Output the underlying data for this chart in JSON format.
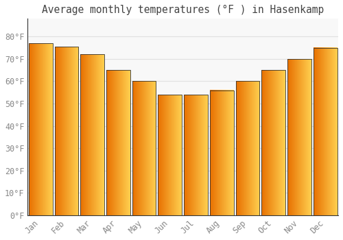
{
  "title": "Average monthly temperatures (°F ) in Hasenkamp",
  "months": [
    "Jan",
    "Feb",
    "Mar",
    "Apr",
    "May",
    "Jun",
    "Jul",
    "Aug",
    "Sep",
    "Oct",
    "Nov",
    "Dec"
  ],
  "values": [
    77,
    75.5,
    72,
    65,
    60,
    54,
    54,
    56,
    60,
    65,
    70,
    75
  ],
  "bar_color_left": "#E87000",
  "bar_color_right": "#FFD050",
  "bar_edge_color": "#333333",
  "background_color": "#ffffff",
  "plot_bg_color": "#f8f8f8",
  "ylim": [
    0,
    88
  ],
  "yticks": [
    0,
    10,
    20,
    30,
    40,
    50,
    60,
    70,
    80
  ],
  "ytick_labels": [
    "0°F",
    "10°F",
    "20°F",
    "30°F",
    "40°F",
    "50°F",
    "60°F",
    "70°F",
    "80°F"
  ],
  "grid_color": "#e0e0e0",
  "tick_label_color": "#888888",
  "title_color": "#444444",
  "title_fontsize": 10.5,
  "tick_fontsize": 8.5,
  "bar_width": 0.92
}
